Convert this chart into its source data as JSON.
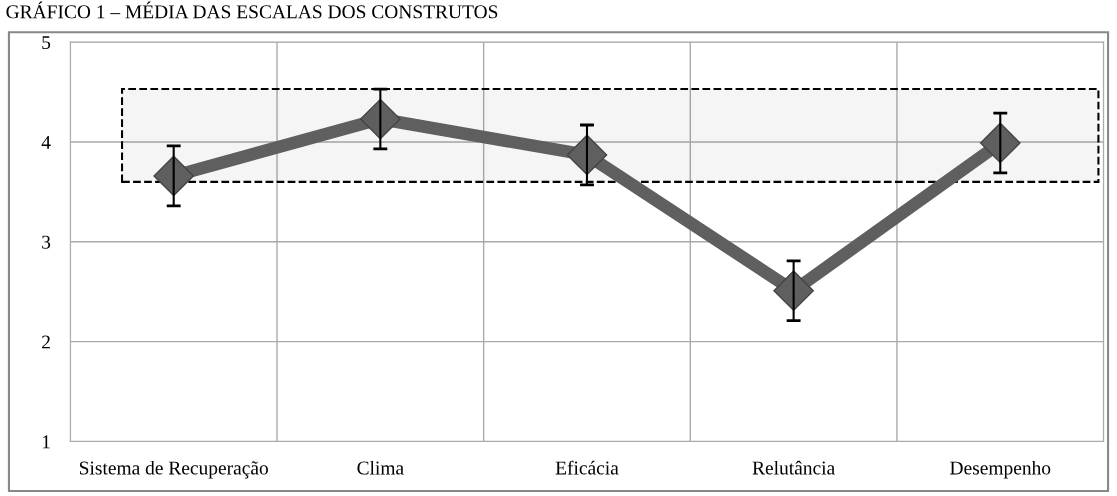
{
  "chart_data": {
    "type": "line",
    "title": "GRÁFICO 1 – MÉDIA DAS ESCALAS DOS CONSTRUTOS",
    "categories": [
      "Sistema de Recuperação",
      "Clima",
      "Eficácia",
      "Relutância",
      "Desempenho"
    ],
    "series": [
      {
        "color": "#5f5f5f",
        "values": [
          3.66,
          4.23,
          3.87,
          2.51,
          3.99
        ],
        "errors": [
          0.3,
          0.3,
          0.3,
          0.3,
          0.3
        ]
      }
    ],
    "ylim": [
      1,
      5
    ],
    "yticks": [
      1,
      2,
      3,
      4,
      5
    ],
    "grid": true,
    "marker": "diamond",
    "line_style": "solid",
    "bands": [
      {
        "axis": "y",
        "from": 3.6,
        "to": 4.53,
        "color": "#000000"
      }
    ]
  }
}
